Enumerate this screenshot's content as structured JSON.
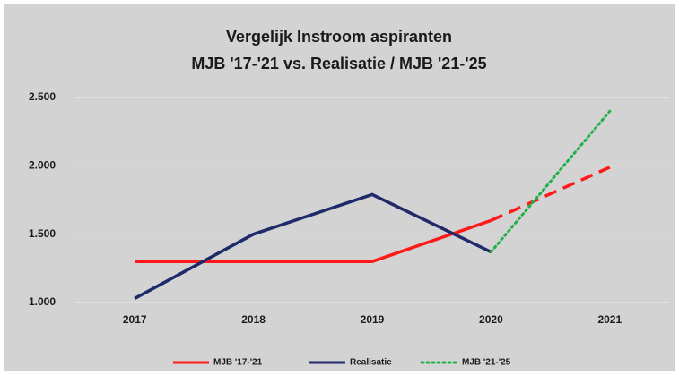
{
  "chart_data": {
    "type": "line",
    "title": "Vergelijk Instroom aspiranten",
    "subtitle": "MJB '17-'21 vs. Realisatie / MJB '21-'25",
    "categories": [
      "2017",
      "2018",
      "2019",
      "2020",
      "2021"
    ],
    "series": [
      {
        "name": "MJB '17-'21",
        "color": "#ff1a1a",
        "style": "solid",
        "dashed_from": 3,
        "values": [
          1300,
          1300,
          1300,
          1600,
          1990
        ]
      },
      {
        "name": "Realisatie",
        "color": "#1f2a6b",
        "style": "solid",
        "values": [
          1030,
          1500,
          1790,
          1370,
          null
        ]
      },
      {
        "name": "MJB '21-'25",
        "color": "#22b04a",
        "style": "dotted",
        "values": [
          null,
          null,
          null,
          1370,
          2400
        ]
      }
    ],
    "ylim": [
      1000,
      2500
    ],
    "yticks": [
      {
        "value": 1000,
        "label": "1.000"
      },
      {
        "value": 1500,
        "label": "1.500"
      },
      {
        "value": 2000,
        "label": "2.000"
      },
      {
        "value": 2500,
        "label": "2.500"
      }
    ],
    "grid": true,
    "legend": "bottom"
  }
}
